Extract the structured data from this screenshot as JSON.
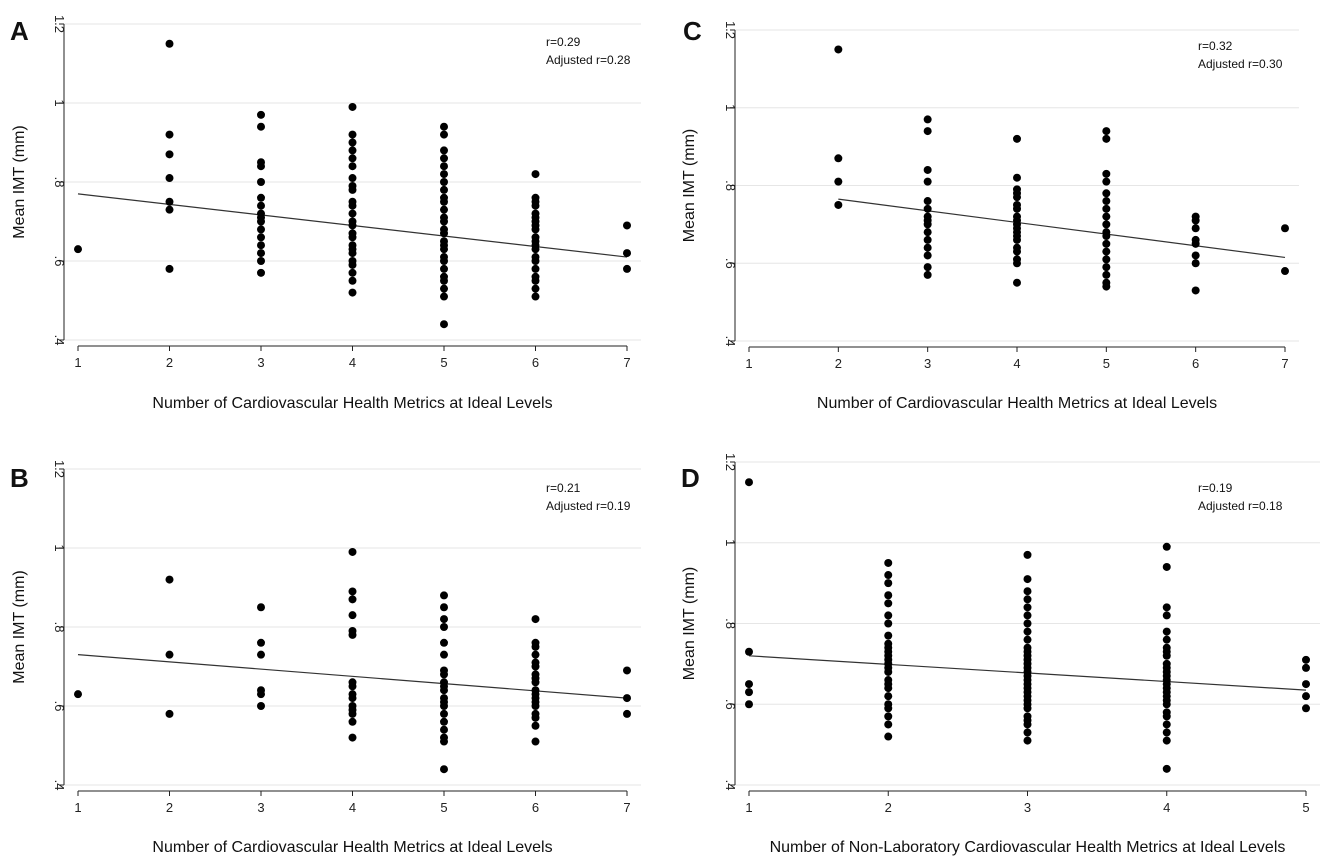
{
  "colors": {
    "points": "#000000",
    "fit_line": "#333333",
    "grid": "#e6e6e6",
    "background": "#ffffff"
  },
  "chart_data": [
    {
      "type": "scatter",
      "panel": "A",
      "xlabel": "Number of Cardiovascular Health Metrics at Ideal Levels",
      "ylabel": "Mean IMT (mm)",
      "xlim": [
        1,
        7
      ],
      "ylim": [
        0.4,
        1.2
      ],
      "xticks": [
        "1",
        "2",
        "3",
        "4",
        "5",
        "6",
        "7"
      ],
      "yticks": [
        ".4",
        ".6",
        ".8",
        "1",
        "1.2"
      ],
      "grid": true,
      "annotations": [
        "r=0.29",
        "Adjusted r=0.28"
      ],
      "fit": {
        "x": [
          1,
          7
        ],
        "y": [
          0.77,
          0.61
        ]
      },
      "points": {
        "1": [
          0.63
        ],
        "2": [
          0.58,
          0.73,
          0.75,
          0.81,
          0.87,
          0.92,
          1.15
        ],
        "3": [
          0.57,
          0.6,
          0.62,
          0.64,
          0.66,
          0.68,
          0.7,
          0.71,
          0.72,
          0.74,
          0.76,
          0.8,
          0.84,
          0.85,
          0.94,
          0.97
        ],
        "4": [
          0.52,
          0.55,
          0.57,
          0.59,
          0.6,
          0.62,
          0.63,
          0.64,
          0.66,
          0.67,
          0.69,
          0.7,
          0.72,
          0.74,
          0.75,
          0.78,
          0.79,
          0.81,
          0.84,
          0.86,
          0.88,
          0.9,
          0.92,
          0.99
        ],
        "5": [
          0.44,
          0.51,
          0.53,
          0.55,
          0.56,
          0.58,
          0.6,
          0.61,
          0.63,
          0.64,
          0.65,
          0.67,
          0.68,
          0.7,
          0.71,
          0.73,
          0.75,
          0.76,
          0.78,
          0.8,
          0.82,
          0.84,
          0.86,
          0.88,
          0.92,
          0.94
        ],
        "6": [
          0.51,
          0.53,
          0.55,
          0.56,
          0.58,
          0.6,
          0.61,
          0.63,
          0.64,
          0.65,
          0.66,
          0.68,
          0.69,
          0.7,
          0.71,
          0.72,
          0.74,
          0.75,
          0.76,
          0.82
        ],
        "7": [
          0.58,
          0.62,
          0.69
        ]
      }
    },
    {
      "type": "scatter",
      "panel": "B",
      "xlabel": "Number of Cardiovascular Health Metrics at Ideal Levels",
      "ylabel": "Mean IMT (mm)",
      "xlim": [
        1,
        7
      ],
      "ylim": [
        0.4,
        1.2
      ],
      "xticks": [
        "1",
        "2",
        "3",
        "4",
        "5",
        "6",
        "7"
      ],
      "yticks": [
        ".4",
        ".6",
        ".8",
        "1",
        "1.2"
      ],
      "grid": true,
      "annotations": [
        "r=0.21",
        "Adjusted r=0.19"
      ],
      "fit": {
        "x": [
          1,
          7
        ],
        "y": [
          0.73,
          0.62
        ]
      },
      "points": {
        "1": [
          0.63
        ],
        "2": [
          0.58,
          0.73,
          0.92
        ],
        "3": [
          0.6,
          0.63,
          0.64,
          0.73,
          0.76,
          0.85
        ],
        "4": [
          0.52,
          0.56,
          0.58,
          0.59,
          0.6,
          0.62,
          0.63,
          0.65,
          0.66,
          0.78,
          0.79,
          0.83,
          0.87,
          0.89,
          0.99
        ],
        "5": [
          0.44,
          0.51,
          0.52,
          0.54,
          0.56,
          0.58,
          0.6,
          0.61,
          0.62,
          0.64,
          0.65,
          0.66,
          0.68,
          0.69,
          0.73,
          0.76,
          0.8,
          0.82,
          0.85,
          0.88
        ],
        "6": [
          0.51,
          0.55,
          0.57,
          0.58,
          0.6,
          0.61,
          0.62,
          0.63,
          0.64,
          0.66,
          0.67,
          0.68,
          0.7,
          0.71,
          0.73,
          0.75,
          0.76,
          0.82
        ],
        "7": [
          0.58,
          0.62,
          0.69
        ]
      }
    },
    {
      "type": "scatter",
      "panel": "C",
      "xlabel": "Number of Cardiovascular Health Metrics at Ideal Levels",
      "ylabel": "Mean IMT (mm)",
      "xlim": [
        1,
        7
      ],
      "ylim": [
        0.4,
        1.2
      ],
      "xticks": [
        "1",
        "2",
        "3",
        "4",
        "5",
        "6",
        "7"
      ],
      "yticks": [
        ".4",
        ".6",
        ".8",
        "1",
        "1.2"
      ],
      "grid": true,
      "annotations": [
        "r=0.32",
        "Adjusted r=0.30"
      ],
      "fit": {
        "x": [
          2,
          7
        ],
        "y": [
          0.765,
          0.615
        ]
      },
      "points": {
        "2": [
          0.75,
          0.81,
          0.87,
          1.15
        ],
        "3": [
          0.57,
          0.59,
          0.62,
          0.64,
          0.66,
          0.68,
          0.7,
          0.71,
          0.72,
          0.74,
          0.76,
          0.81,
          0.84,
          0.94,
          0.97
        ],
        "4": [
          0.55,
          0.6,
          0.61,
          0.63,
          0.64,
          0.66,
          0.67,
          0.68,
          0.69,
          0.7,
          0.71,
          0.72,
          0.74,
          0.75,
          0.77,
          0.78,
          0.79,
          0.82,
          0.92
        ],
        "5": [
          0.54,
          0.55,
          0.57,
          0.59,
          0.61,
          0.63,
          0.65,
          0.67,
          0.68,
          0.7,
          0.72,
          0.74,
          0.76,
          0.78,
          0.81,
          0.83,
          0.92,
          0.94
        ],
        "6": [
          0.53,
          0.6,
          0.62,
          0.65,
          0.66,
          0.69,
          0.71,
          0.72
        ],
        "7": [
          0.58,
          0.69
        ]
      }
    },
    {
      "type": "scatter",
      "panel": "D",
      "xlabel": "Number of Non-Laboratory Cardiovascular Health Metrics at Ideal Levels",
      "ylabel": "Mean IMT (mm)",
      "xlim": [
        1,
        5
      ],
      "ylim": [
        0.4,
        1.2
      ],
      "xticks": [
        "1",
        "2",
        "3",
        "4",
        "5"
      ],
      "yticks": [
        ".4",
        ".6",
        ".8",
        "1",
        "1.2"
      ],
      "grid": true,
      "annotations": [
        "r=0.19",
        "Adjusted r=0.18"
      ],
      "fit": {
        "x": [
          1,
          5
        ],
        "y": [
          0.72,
          0.635
        ]
      },
      "points": {
        "1": [
          0.6,
          0.63,
          0.65,
          0.73,
          1.15
        ],
        "2": [
          0.52,
          0.55,
          0.57,
          0.59,
          0.6,
          0.62,
          0.64,
          0.65,
          0.66,
          0.68,
          0.69,
          0.7,
          0.71,
          0.72,
          0.73,
          0.74,
          0.75,
          0.77,
          0.8,
          0.82,
          0.85,
          0.87,
          0.9,
          0.92,
          0.95
        ],
        "3": [
          0.51,
          0.53,
          0.55,
          0.56,
          0.57,
          0.59,
          0.6,
          0.61,
          0.62,
          0.63,
          0.64,
          0.65,
          0.66,
          0.67,
          0.68,
          0.69,
          0.7,
          0.71,
          0.72,
          0.73,
          0.74,
          0.76,
          0.78,
          0.8,
          0.82,
          0.84,
          0.86,
          0.88,
          0.91,
          0.97
        ],
        "4": [
          0.44,
          0.51,
          0.53,
          0.55,
          0.57,
          0.58,
          0.6,
          0.61,
          0.62,
          0.63,
          0.64,
          0.65,
          0.66,
          0.67,
          0.68,
          0.69,
          0.7,
          0.72,
          0.73,
          0.74,
          0.76,
          0.78,
          0.82,
          0.84,
          0.94,
          0.99
        ],
        "5": [
          0.59,
          0.62,
          0.65,
          0.69,
          0.71
        ]
      }
    }
  ]
}
